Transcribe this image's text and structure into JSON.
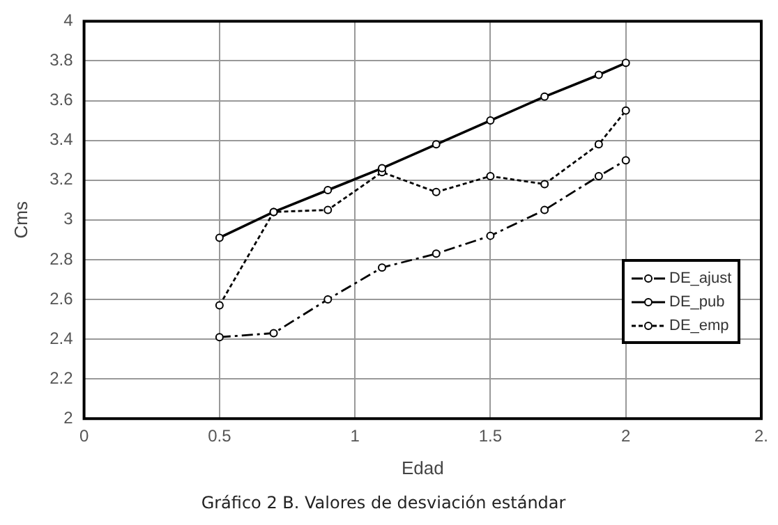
{
  "chart_data": {
    "type": "line",
    "title": "Gráfico 2 B. Valores de desviación estándar",
    "xlabel": "Edad",
    "ylabel": "Cms",
    "xlim": [
      0,
      2.5
    ],
    "xticks": [
      0,
      0.5,
      1,
      1.5,
      2,
      {
        "value": 2.5,
        "label": "2."
      }
    ],
    "ylim": [
      2,
      4
    ],
    "yticks": [
      2,
      2.2,
      2.4,
      2.6,
      2.8,
      3,
      3.2,
      3.4,
      3.6,
      3.8,
      4
    ],
    "grid": true,
    "legend": "right",
    "marker": "circle",
    "series": [
      {
        "name": "DE_ajust",
        "color": "#000000",
        "line_style": "dashed",
        "x": [
          0.5,
          0.7,
          0.9,
          1.1,
          1.3,
          1.5,
          1.7,
          1.9,
          2.0
        ],
        "values": [
          2.41,
          2.43,
          2.6,
          2.76,
          2.83,
          2.92,
          3.05,
          3.22,
          3.3
        ]
      },
      {
        "name": "DE_pub",
        "color": "#000000",
        "line_style": "solid",
        "x": [
          0.5,
          0.7,
          0.9,
          1.1,
          1.3,
          1.5,
          1.7,
          1.9,
          2.0
        ],
        "values": [
          2.91,
          3.04,
          3.15,
          3.26,
          3.38,
          3.5,
          3.62,
          3.73,
          3.79
        ]
      },
      {
        "name": "DE_emp",
        "color": "#000000",
        "line_style": "dotted",
        "x": [
          0.5,
          0.7,
          0.9,
          1.1,
          1.3,
          1.5,
          1.7,
          1.9,
          2.0
        ],
        "values": [
          2.57,
          3.04,
          3.05,
          3.24,
          3.14,
          3.22,
          3.18,
          3.38,
          3.55
        ]
      }
    ]
  }
}
